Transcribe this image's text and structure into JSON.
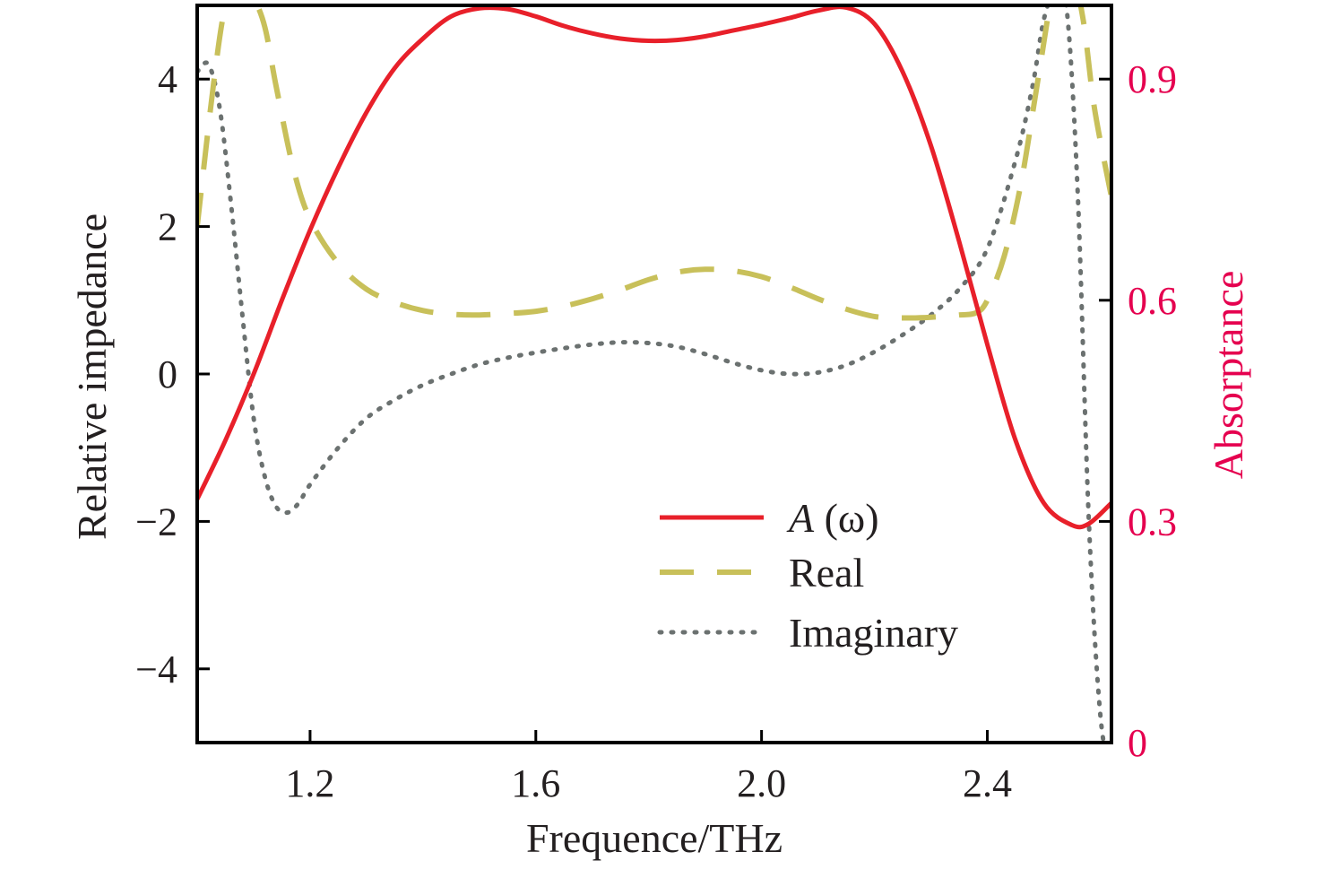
{
  "chart_data": {
    "type": "line",
    "xlabel": "Frequence/THz",
    "ylabel_left": "Relative impedance",
    "ylabel_right": "Absorptance",
    "xlim": [
      1.0,
      2.62
    ],
    "ylim_left": [
      -5.0,
      5.0
    ],
    "ylim_right": [
      0.0,
      1.0
    ],
    "x_ticks": [
      "1.2",
      "1.6",
      "2.0",
      "2.4"
    ],
    "x_tick_values": [
      1.2,
      1.6,
      2.0,
      2.4
    ],
    "y_left_ticks": [
      "4",
      "2",
      "0",
      "−2",
      "−4"
    ],
    "y_left_tick_values": [
      4,
      2,
      0,
      -2,
      -4
    ],
    "y_right_ticks": [
      "0.9",
      "0.6",
      "0.3",
      "0"
    ],
    "y_right_tick_values": [
      0.9,
      0.6,
      0.3,
      0.0
    ],
    "grid": false,
    "legend_position": "lower-right",
    "series": [
      {
        "name": "A (ω)",
        "legend_main": "A",
        "legend_suffix": " (ω)",
        "axis": "right",
        "style": "solid",
        "color": "#e8202a",
        "x": [
          1.0,
          1.05,
          1.1,
          1.15,
          1.2,
          1.25,
          1.3,
          1.35,
          1.4,
          1.45,
          1.5,
          1.55,
          1.6,
          1.65,
          1.7,
          1.75,
          1.8,
          1.85,
          1.9,
          1.95,
          2.0,
          2.05,
          2.1,
          2.15,
          2.2,
          2.25,
          2.3,
          2.35,
          2.4,
          2.45,
          2.5,
          2.55,
          2.58,
          2.62
        ],
        "y": [
          0.33,
          0.41,
          0.5,
          0.6,
          0.695,
          0.78,
          0.855,
          0.915,
          0.955,
          0.985,
          0.996,
          0.995,
          0.985,
          0.972,
          0.962,
          0.955,
          0.952,
          0.953,
          0.958,
          0.966,
          0.974,
          0.983,
          0.993,
          0.997,
          0.975,
          0.91,
          0.81,
          0.68,
          0.54,
          0.41,
          0.325,
          0.295,
          0.297,
          0.325
        ]
      },
      {
        "name": "Real",
        "axis": "left",
        "style": "dashed",
        "color": "#c8c05a",
        "x": [
          1.0,
          1.03,
          1.05,
          1.07,
          1.08,
          1.1,
          1.12,
          1.14,
          1.17,
          1.2,
          1.25,
          1.3,
          1.35,
          1.4,
          1.45,
          1.5,
          1.55,
          1.6,
          1.65,
          1.7,
          1.75,
          1.8,
          1.85,
          1.9,
          1.95,
          2.0,
          2.05,
          2.1,
          2.15,
          2.2,
          2.25,
          2.3,
          2.35,
          2.38,
          2.4,
          2.43,
          2.46,
          2.49,
          2.52,
          2.55,
          2.57,
          2.59,
          2.62
        ],
        "y": [
          2.0,
          4.0,
          5.0,
          5.3,
          5.3,
          5.1,
          4.7,
          3.9,
          2.8,
          2.1,
          1.5,
          1.15,
          0.97,
          0.86,
          0.81,
          0.8,
          0.82,
          0.85,
          0.92,
          1.02,
          1.14,
          1.28,
          1.38,
          1.42,
          1.4,
          1.32,
          1.18,
          1.02,
          0.88,
          0.78,
          0.76,
          0.77,
          0.8,
          0.83,
          1.0,
          1.6,
          2.6,
          4.0,
          5.3,
          5.4,
          4.8,
          3.6,
          2.4
        ]
      },
      {
        "name": "Imaginary",
        "axis": "left",
        "style": "dotted",
        "color": "#6b7170",
        "x": [
          1.0,
          1.02,
          1.04,
          1.06,
          1.08,
          1.1,
          1.12,
          1.14,
          1.16,
          1.18,
          1.2,
          1.25,
          1.3,
          1.35,
          1.4,
          1.45,
          1.5,
          1.55,
          1.6,
          1.65,
          1.7,
          1.75,
          1.8,
          1.85,
          1.9,
          1.95,
          2.0,
          2.05,
          2.1,
          2.15,
          2.2,
          2.25,
          2.3,
          2.35,
          2.4,
          2.45,
          2.48,
          2.5,
          2.52,
          2.54,
          2.56,
          2.58,
          2.6,
          2.62
        ],
        "y": [
          4.1,
          4.2,
          3.6,
          2.3,
          0.8,
          -0.6,
          -1.4,
          -1.8,
          -1.88,
          -1.75,
          -1.5,
          -1.0,
          -0.6,
          -0.35,
          -0.15,
          0.0,
          0.13,
          0.22,
          0.29,
          0.35,
          0.4,
          0.43,
          0.42,
          0.37,
          0.27,
          0.15,
          0.05,
          0.0,
          0.02,
          0.12,
          0.3,
          0.53,
          0.8,
          1.15,
          1.7,
          2.9,
          3.9,
          4.8,
          5.2,
          5.0,
          2.5,
          -2.0,
          -4.6,
          -5.5
        ]
      }
    ]
  }
}
